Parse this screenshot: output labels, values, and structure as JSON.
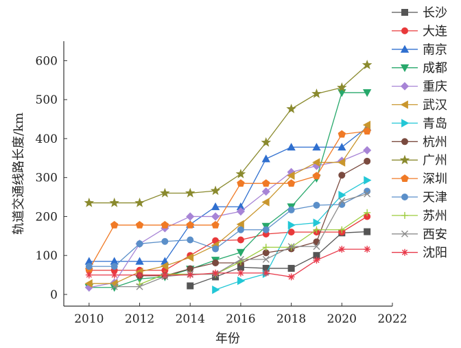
{
  "chart_data": {
    "type": "line",
    "title": "",
    "xlabel": "年份",
    "ylabel": "轨道交通线路长度/km",
    "xlim": [
      2009,
      2022
    ],
    "ylim": [
      -30,
      650
    ],
    "xticks": [
      2010,
      2012,
      2014,
      2016,
      2018,
      2020,
      2022
    ],
    "yticks": [
      0,
      100,
      200,
      300,
      400,
      500,
      600
    ],
    "legend_position": "right",
    "series": [
      {
        "name": "长沙",
        "color": "#555555",
        "marker": "square",
        "x": [
          2014,
          2015,
          2016,
          2017,
          2018,
          2019,
          2020,
          2021
        ],
        "y": [
          22,
          45,
          70,
          67,
          67,
          100,
          158,
          161
        ]
      },
      {
        "name": "大连",
        "color": "#e8393a",
        "marker": "circle",
        "x": [
          2010,
          2011,
          2012,
          2013,
          2014,
          2015,
          2016,
          2017,
          2018,
          2019,
          2020,
          2021
        ],
        "y": [
          62,
          62,
          62,
          62,
          100,
          138,
          140,
          155,
          160,
          160,
          160,
          200
        ]
      },
      {
        "name": "南京",
        "color": "#2f6fcf",
        "marker": "triangle-up",
        "x": [
          2010,
          2011,
          2012,
          2013,
          2014,
          2015,
          2016,
          2017,
          2018,
          2019,
          2020,
          2021
        ],
        "y": [
          85,
          85,
          85,
          85,
          180,
          225,
          225,
          348,
          378,
          378,
          378,
          429
        ]
      },
      {
        "name": "成都",
        "color": "#27a86b",
        "marker": "triangle-down",
        "x": [
          2010,
          2011,
          2012,
          2013,
          2014,
          2015,
          2016,
          2017,
          2018,
          2019,
          2020,
          2021
        ],
        "y": [
          18,
          18,
          40,
          45,
          65,
          88,
          108,
          175,
          225,
          298,
          518,
          518
        ]
      },
      {
        "name": "重庆",
        "color": "#a784d6",
        "marker": "diamond",
        "x": [
          2010,
          2011,
          2012,
          2013,
          2014,
          2015,
          2016,
          2017,
          2018,
          2019,
          2020,
          2021
        ],
        "y": [
          18,
          30,
          130,
          170,
          200,
          200,
          213,
          264,
          314,
          330,
          343,
          370
        ]
      },
      {
        "name": "武汉",
        "color": "#c9962d",
        "marker": "triangle-left",
        "x": [
          2010,
          2011,
          2012,
          2013,
          2014,
          2015,
          2016,
          2017,
          2018,
          2019,
          2020,
          2021
        ],
        "y": [
          28,
          28,
          58,
          73,
          95,
          126,
          180,
          237,
          305,
          339,
          339,
          435
        ]
      },
      {
        "name": "青岛",
        "color": "#22c7d6",
        "marker": "triangle-right",
        "x": [
          2015,
          2016,
          2017,
          2018,
          2019,
          2020,
          2021
        ],
        "y": [
          12,
          35,
          53,
          178,
          184,
          255,
          293
        ]
      },
      {
        "name": "杭州",
        "color": "#7a4a3f",
        "marker": "circle",
        "x": [
          2012,
          2013,
          2014,
          2015,
          2016,
          2017,
          2018,
          2019,
          2020,
          2021
        ],
        "y": [
          48,
          48,
          66,
          81,
          81,
          107,
          117,
          135,
          306,
          342
        ]
      },
      {
        "name": "广州",
        "color": "#8a8a2e",
        "marker": "star",
        "x": [
          2010,
          2011,
          2012,
          2013,
          2014,
          2015,
          2016,
          2017,
          2018,
          2019,
          2020,
          2021
        ],
        "y": [
          235,
          235,
          235,
          260,
          260,
          266,
          309,
          390,
          476,
          515,
          531,
          589
        ]
      },
      {
        "name": "深圳",
        "color": "#f07a26",
        "marker": "pentagon",
        "x": [
          2010,
          2011,
          2012,
          2013,
          2014,
          2015,
          2016,
          2017,
          2018,
          2019,
          2020,
          2021
        ],
        "y": [
          64,
          178,
          178,
          178,
          178,
          178,
          285,
          285,
          285,
          304,
          411,
          419
        ]
      },
      {
        "name": "天津",
        "color": "#5b8fc9",
        "marker": "circle",
        "x": [
          2010,
          2011,
          2012,
          2013,
          2014,
          2015,
          2016,
          2017,
          2018,
          2019,
          2020,
          2021
        ],
        "y": [
          72,
          72,
          130,
          136,
          140,
          117,
          166,
          166,
          217,
          229,
          231,
          265
        ]
      },
      {
        "name": "苏州",
        "color": "#9ccc3c",
        "marker": "plus",
        "x": [
          2012,
          2013,
          2014,
          2015,
          2016,
          2017,
          2018,
          2019,
          2020,
          2021
        ],
        "y": [
          26,
          52,
          52,
          52,
          84,
          121,
          121,
          166,
          166,
          210
        ]
      },
      {
        "name": "西安",
        "color": "#8c8c8c",
        "marker": "x",
        "x": [
          2011,
          2012,
          2013,
          2014,
          2015,
          2016,
          2017,
          2018,
          2019,
          2020,
          2021
        ],
        "y": [
          20,
          20,
          46,
          52,
          52,
          90,
          90,
          123,
          123,
          240,
          258
        ]
      },
      {
        "name": "沈阳",
        "color": "#e8394a",
        "marker": "asterisk",
        "x": [
          2010,
          2011,
          2012,
          2013,
          2014,
          2015,
          2016,
          2017,
          2018,
          2019,
          2020,
          2021
        ],
        "y": [
          50,
          50,
          50,
          50,
          50,
          55,
          55,
          55,
          45,
          88,
          116,
          116
        ]
      }
    ]
  }
}
